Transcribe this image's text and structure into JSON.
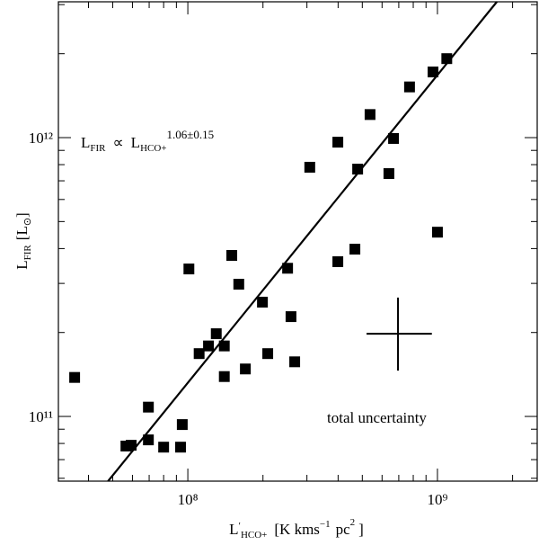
{
  "chart_data": {
    "type": "scatter",
    "x_label": [
      "L",
      "′",
      "HCO+",
      "[K kms",
      "−1",
      "pc",
      "2",
      "]"
    ],
    "y_label": [
      "L",
      "FIR",
      "[L",
      "⊙",
      "]"
    ],
    "relation": [
      "L",
      "FIR",
      "∝",
      "L",
      "HCO+",
      "1.06±0.15"
    ],
    "uncertainty_label": "total uncertainty",
    "log_x": true,
    "log_y": true,
    "xlim": [
      30300000.0,
      2510000000.0
    ],
    "ylim": [
      58600000000.0,
      3070000000000.0
    ],
    "xticks": [
      {
        "value": 100000000.0,
        "label": "10⁸"
      },
      {
        "value": 1000000000.0,
        "label": "10⁹"
      }
    ],
    "yticks": [
      {
        "value": 100000000000.0,
        "label": "10¹¹"
      },
      {
        "value": 1000000000000.0,
        "label": "10¹²"
      }
    ],
    "xticks_minor": [
      40000000.0,
      50000000.0,
      60000000.0,
      70000000.0,
      80000000.0,
      90000000.0,
      200000000.0,
      300000000.0,
      400000000.0,
      500000000.0,
      600000000.0,
      700000000.0,
      800000000.0,
      900000000.0,
      2000000000.0
    ],
    "yticks_minor": [
      60000000000.0,
      70000000000.0,
      80000000000.0,
      90000000000.0,
      200000000000.0,
      300000000000.0,
      400000000000.0,
      500000000000.0,
      600000000000.0,
      700000000000.0,
      800000000000.0,
      900000000000.0,
      2000000000000.0,
      3000000000000.0
    ],
    "color": "#000000",
    "x": [
      35200000.0,
      56500000.0,
      59300000.0,
      69500000.0,
      69500000.0,
      80000000.0,
      93500000.0,
      95000000.0,
      101000000.0,
      111000000.0,
      121000000.0,
      130000000.0,
      140000000.0,
      140000000.0,
      150000000.0,
      160000000.0,
      170000000.0,
      199000000.0,
      209000000.0,
      251000000.0,
      259000000.0,
      268000000.0,
      308000000.0,
      399000000.0,
      399000000.0,
      467000000.0,
      479000000.0,
      537000000.0,
      639000000.0,
      667000000.0,
      773000000.0,
      960000000.0,
      1000000000.0,
      1090000000.0
    ],
    "values": [
      138000000000.0,
      78300000000.0,
      78800000000.0,
      82400000000.0,
      108000000000.0,
      77600000000.0,
      77600000000.0,
      93500000000.0,
      338000000000.0,
      168000000000.0,
      179000000000.0,
      198000000000.0,
      139000000000.0,
      179000000000.0,
      378000000000.0,
      298000000000.0,
      148000000000.0,
      257000000000.0,
      168000000000.0,
      340000000000.0,
      228000000000.0,
      157000000000.0,
      783000000000.0,
      359000000000.0,
      963000000000.0,
      398000000000.0,
      771000000000.0,
      1210000000000.0,
      743000000000.0,
      993000000000.0,
      1520000000000.0,
      1720000000000.0,
      458000000000.0,
      1920000000000.0
    ],
    "fit": {
      "x": [
        47900000.0,
        1730000000.0
      ],
      "values": [
        58600000000.0,
        3070000000000.0
      ]
    },
    "error_bar": {
      "x": 695000000.0,
      "y": 198000000000.0,
      "xlow": 520000000.0,
      "xhigh": 950000000.0,
      "ylow": 146000000000.0,
      "yhigh": 267000000000.0
    }
  }
}
